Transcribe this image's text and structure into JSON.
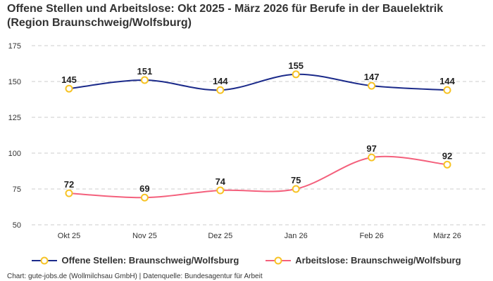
{
  "chart_data": {
    "type": "line",
    "title": "Offene Stellen und Arbeitslose: Okt 2025 - März 2026 für Berufe in der Bauelektrik (Region Braunschweig/Wolfsburg)",
    "categories": [
      "Okt 25",
      "Nov 25",
      "Dez 25",
      "Jan 26",
      "Feb 26",
      "März 26"
    ],
    "yticks": [
      50,
      75,
      100,
      125,
      150,
      175
    ],
    "ylim": [
      50,
      175
    ],
    "grid": true,
    "legend_position": "bottom",
    "series": [
      {
        "name": "Offene Stellen: Braunschweig/Wolfsburg",
        "color": "#1b2a8a",
        "values": [
          145,
          151,
          144,
          155,
          147,
          144
        ]
      },
      {
        "name": "Arbeitslose: Braunschweig/Wolfsburg",
        "color": "#f4607c",
        "values": [
          72,
          69,
          74,
          75,
          97,
          92
        ]
      }
    ],
    "marker_color": "#f7c325"
  },
  "footer": "Chart: gute-jobs.de (Wollmilchsau GmbH) | Datenquelle: Bundesagentur für Arbeit"
}
